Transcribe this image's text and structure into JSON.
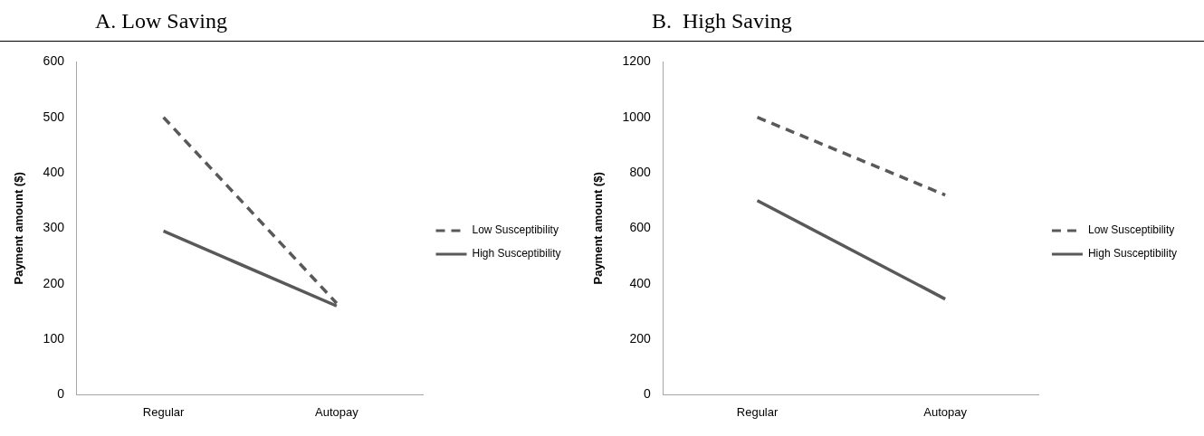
{
  "chart_data": [
    {
      "type": "line",
      "title": "A. Low Saving",
      "ylabel": "Payment amount ($)",
      "categories": [
        "Regular",
        "Autopay"
      ],
      "ylim": [
        0,
        600
      ],
      "yticks": [
        0,
        100,
        200,
        300,
        400,
        500,
        600
      ],
      "grid": false,
      "legend": "right",
      "marker": "none",
      "series": [
        {
          "name": "Low Susceptibility",
          "color": "#595959",
          "line_style": "dashed",
          "values": [
            500,
            165
          ]
        },
        {
          "name": "High Susceptibility",
          "color": "#595959",
          "line_style": "solid",
          "values": [
            295,
            160
          ]
        }
      ]
    },
    {
      "type": "line",
      "title": "B.  High Saving",
      "ylabel": "Payment amount ($)",
      "categories": [
        "Regular",
        "Autopay"
      ],
      "ylim": [
        0,
        1200
      ],
      "yticks": [
        0,
        200,
        400,
        600,
        800,
        1000,
        1200
      ],
      "grid": false,
      "legend": "right",
      "marker": "none",
      "series": [
        {
          "name": "Low Susceptibility",
          "color": "#595959",
          "line_style": "dashed",
          "values": [
            1000,
            720
          ]
        },
        {
          "name": "High Susceptibility",
          "color": "#595959",
          "line_style": "solid",
          "values": [
            700,
            345
          ]
        }
      ]
    }
  ]
}
